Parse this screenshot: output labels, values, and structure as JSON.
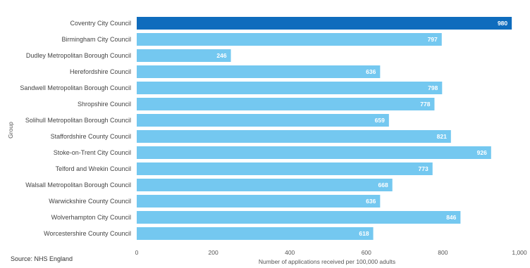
{
  "chart_data": {
    "type": "bar",
    "orientation": "horizontal",
    "categories": [
      "Coventry City Council",
      "Birmingham City Council",
      "Dudley Metropolitan Borough Council",
      "Herefordshire Council",
      "Sandwell Metropolitan Borough Council",
      "Shropshire Council",
      "Solihull Metropolitan Borough Council",
      "Staffordshire County Council",
      "Stoke-on-Trent City Council",
      "Telford and Wrekin Council",
      "Walsall Metropolitan Borough Council",
      "Warwickshire County Council",
      "Wolverhampton City Council",
      "Worcestershire County Council"
    ],
    "values": [
      980,
      797,
      246,
      636,
      798,
      778,
      659,
      821,
      926,
      773,
      668,
      636,
      846,
      618
    ],
    "highlighted_category": "Coventry City Council",
    "xlabel": "Number of applications received per 100,000 adults",
    "ylabel": "Group",
    "xlim": [
      0,
      1000
    ],
    "ticks": [
      "0",
      "200",
      "400",
      "600",
      "800",
      "1,000"
    ],
    "tick_values": [
      0,
      200,
      400,
      600,
      800,
      1000
    ],
    "data_labels": [
      "980",
      "797",
      "246",
      "636",
      "798",
      "778",
      "659",
      "821",
      "926",
      "773",
      "668",
      "636",
      "846",
      "618"
    ],
    "grid": false,
    "colors": {
      "highlight": "#0F6CBD",
      "default": "#74C8F0"
    }
  },
  "source_text": "Source: NHS England"
}
